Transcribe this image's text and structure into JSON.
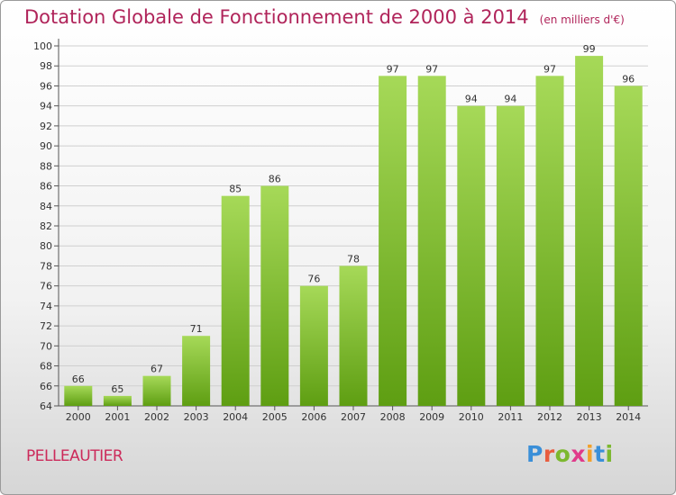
{
  "header": {
    "title": "Dotation Globale de Fonctionnement de 2000 à 2014",
    "subtitle": "(en milliers d'€)"
  },
  "footer": {
    "commune": "PELLEAUTIER",
    "logo_text": "Proxiti"
  },
  "colors": {
    "title": "#b0245a",
    "bar_light": "#a6d958",
    "bar_dark": "#5e9e12",
    "grid": "#cfcfcf",
    "logo_letters": [
      "#3a8fd8",
      "#e85d3f",
      "#7cb82f",
      "#e03a8a",
      "#f2a12b",
      "#3a8fd8",
      "#7cb82f"
    ]
  },
  "chart_data": {
    "type": "bar",
    "categories": [
      "2000",
      "2001",
      "2002",
      "2003",
      "2004",
      "2005",
      "2006",
      "2007",
      "2008",
      "2009",
      "2010",
      "2011",
      "2012",
      "2013",
      "2014"
    ],
    "values": [
      66,
      65,
      67,
      71,
      85,
      86,
      76,
      78,
      97,
      97,
      94,
      94,
      97,
      99,
      96
    ],
    "ylim": [
      64,
      100
    ],
    "yticks": [
      64,
      66,
      68,
      70,
      72,
      74,
      76,
      78,
      80,
      82,
      84,
      86,
      88,
      90,
      92,
      94,
      96,
      98,
      100
    ],
    "grid": true,
    "xlabel": "",
    "ylabel": ""
  }
}
